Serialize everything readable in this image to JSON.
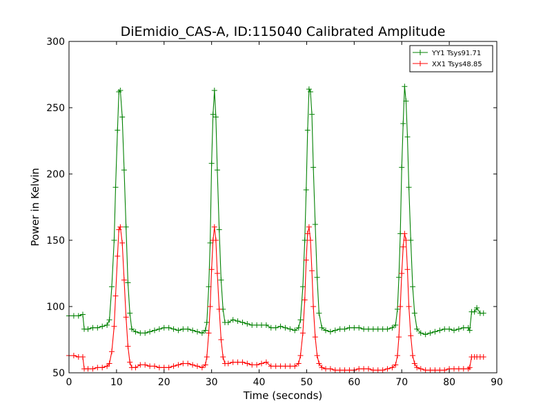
{
  "chart_data": {
    "type": "line",
    "title": "DiEmidio_CAS-A, ID:115040 Calibrated Amplitude",
    "xlabel": "Time (seconds)",
    "ylabel": "Power in Kelvin",
    "xlim": [
      0,
      90
    ],
    "ylim": [
      50,
      300
    ],
    "xticks": [
      0,
      10,
      20,
      30,
      40,
      50,
      60,
      70,
      80,
      90
    ],
    "yticks": [
      50,
      100,
      150,
      200,
      250,
      300
    ],
    "xtick_labels": [
      "0",
      "10",
      "20",
      "30",
      "40",
      "50",
      "60",
      "70",
      "80",
      "90"
    ],
    "ytick_labels": [
      "50",
      "100",
      "150",
      "200",
      "250",
      "300"
    ],
    "grid": false,
    "legend_position": "top-right",
    "marker": "plus",
    "series": [
      {
        "name": "YY1 Tsys91.71",
        "color": "#008000",
        "points": [
          [
            0,
            93
          ],
          [
            1,
            93
          ],
          [
            2,
            93
          ],
          [
            2.9,
            94
          ],
          [
            3.2,
            83
          ],
          [
            4,
            83
          ],
          [
            5,
            84
          ],
          [
            6,
            84
          ],
          [
            7,
            85
          ],
          [
            8,
            86
          ],
          [
            8.5,
            90
          ],
          [
            9,
            115
          ],
          [
            9.5,
            150
          ],
          [
            9.8,
            190
          ],
          [
            10.2,
            233
          ],
          [
            10.5,
            262
          ],
          [
            10.8,
            263
          ],
          [
            11.2,
            243
          ],
          [
            11.6,
            203
          ],
          [
            12,
            160
          ],
          [
            12.4,
            118
          ],
          [
            12.8,
            95
          ],
          [
            13.2,
            83
          ],
          [
            14,
            81
          ],
          [
            15,
            80
          ],
          [
            16,
            80
          ],
          [
            17,
            81
          ],
          [
            18,
            82
          ],
          [
            19,
            83
          ],
          [
            20,
            84
          ],
          [
            21,
            84
          ],
          [
            22,
            83
          ],
          [
            23,
            82
          ],
          [
            24,
            83
          ],
          [
            25,
            83
          ],
          [
            26,
            82
          ],
          [
            27,
            81
          ],
          [
            28,
            80
          ],
          [
            28.7,
            82
          ],
          [
            29,
            88
          ],
          [
            29.4,
            115
          ],
          [
            29.7,
            148
          ],
          [
            30,
            208
          ],
          [
            30.3,
            245
          ],
          [
            30.6,
            263
          ],
          [
            30.9,
            243
          ],
          [
            31.2,
            203
          ],
          [
            31.6,
            158
          ],
          [
            32,
            120
          ],
          [
            32.4,
            98
          ],
          [
            32.8,
            88
          ],
          [
            33.5,
            88
          ],
          [
            34.5,
            90
          ],
          [
            35.5,
            89
          ],
          [
            36.5,
            88
          ],
          [
            37.5,
            87
          ],
          [
            38.5,
            86
          ],
          [
            39.5,
            86
          ],
          [
            40.5,
            86
          ],
          [
            41.5,
            86
          ],
          [
            42.5,
            84
          ],
          [
            43.5,
            84
          ],
          [
            44.5,
            85
          ],
          [
            45.5,
            84
          ],
          [
            46.5,
            83
          ],
          [
            47.5,
            82
          ],
          [
            48.3,
            84
          ],
          [
            48.7,
            90
          ],
          [
            49.2,
            115
          ],
          [
            49.6,
            150
          ],
          [
            49.9,
            188
          ],
          [
            50.2,
            233
          ],
          [
            50.5,
            264
          ],
          [
            50.8,
            262
          ],
          [
            51.1,
            245
          ],
          [
            51.4,
            205
          ],
          [
            51.8,
            162
          ],
          [
            52.2,
            122
          ],
          [
            52.6,
            95
          ],
          [
            53.2,
            84
          ],
          [
            54,
            82
          ],
          [
            55,
            81
          ],
          [
            56,
            82
          ],
          [
            57,
            83
          ],
          [
            58,
            83
          ],
          [
            59,
            84
          ],
          [
            60,
            84
          ],
          [
            61,
            84
          ],
          [
            62,
            83
          ],
          [
            63,
            83
          ],
          [
            64,
            83
          ],
          [
            65,
            83
          ],
          [
            66,
            83
          ],
          [
            67,
            83
          ],
          [
            68,
            84
          ],
          [
            68.7,
            86
          ],
          [
            69.1,
            98
          ],
          [
            69.4,
            122
          ],
          [
            69.7,
            155
          ],
          [
            70,
            205
          ],
          [
            70.3,
            238
          ],
          [
            70.6,
            266
          ],
          [
            70.9,
            255
          ],
          [
            71.2,
            228
          ],
          [
            71.5,
            190
          ],
          [
            71.9,
            150
          ],
          [
            72.3,
            115
          ],
          [
            72.7,
            95
          ],
          [
            73.2,
            83
          ],
          [
            74,
            80
          ],
          [
            75,
            79
          ],
          [
            76,
            80
          ],
          [
            77,
            81
          ],
          [
            78,
            82
          ],
          [
            79,
            83
          ],
          [
            80,
            83
          ],
          [
            81,
            82
          ],
          [
            82,
            83
          ],
          [
            83,
            84
          ],
          [
            84,
            84
          ],
          [
            84.3,
            82
          ],
          [
            84.7,
            96
          ],
          [
            85.3,
            96
          ],
          [
            85.8,
            99
          ],
          [
            86.5,
            95
          ],
          [
            87.2,
            95
          ]
        ]
      },
      {
        "name": "XX1 Tsys48.85",
        "color": "#ff0000",
        "points": [
          [
            0,
            63
          ],
          [
            1,
            63
          ],
          [
            2,
            62
          ],
          [
            2.9,
            62
          ],
          [
            3.2,
            53
          ],
          [
            4,
            53
          ],
          [
            5,
            53
          ],
          [
            6,
            54
          ],
          [
            7,
            54
          ],
          [
            8,
            55
          ],
          [
            8.5,
            57
          ],
          [
            9,
            66
          ],
          [
            9.5,
            85
          ],
          [
            9.8,
            108
          ],
          [
            10.2,
            138
          ],
          [
            10.5,
            158
          ],
          [
            10.8,
            160
          ],
          [
            11.2,
            148
          ],
          [
            11.6,
            120
          ],
          [
            12,
            92
          ],
          [
            12.4,
            70
          ],
          [
            12.8,
            58
          ],
          [
            13.2,
            54
          ],
          [
            14,
            54
          ],
          [
            15,
            56
          ],
          [
            16,
            56
          ],
          [
            17,
            55
          ],
          [
            18,
            55
          ],
          [
            19,
            54
          ],
          [
            20,
            54
          ],
          [
            21,
            54
          ],
          [
            22,
            55
          ],
          [
            23,
            56
          ],
          [
            24,
            57
          ],
          [
            25,
            57
          ],
          [
            26,
            56
          ],
          [
            27,
            55
          ],
          [
            28,
            54
          ],
          [
            28.7,
            56
          ],
          [
            29,
            62
          ],
          [
            29.4,
            80
          ],
          [
            29.7,
            100
          ],
          [
            30,
            128
          ],
          [
            30.3,
            150
          ],
          [
            30.6,
            160
          ],
          [
            30.9,
            150
          ],
          [
            31.2,
            125
          ],
          [
            31.6,
            98
          ],
          [
            32,
            75
          ],
          [
            32.4,
            62
          ],
          [
            32.8,
            57
          ],
          [
            33.5,
            57
          ],
          [
            34.5,
            58
          ],
          [
            35.5,
            58
          ],
          [
            36.5,
            58
          ],
          [
            37.5,
            57
          ],
          [
            38.5,
            56
          ],
          [
            39.5,
            56
          ],
          [
            40.5,
            57
          ],
          [
            41.5,
            58
          ],
          [
            42.5,
            55
          ],
          [
            43.5,
            55
          ],
          [
            44.5,
            55
          ],
          [
            45.5,
            55
          ],
          [
            46.5,
            55
          ],
          [
            47.5,
            55
          ],
          [
            48.3,
            57
          ],
          [
            48.7,
            63
          ],
          [
            49.2,
            80
          ],
          [
            49.6,
            105
          ],
          [
            49.9,
            135
          ],
          [
            50.2,
            155
          ],
          [
            50.5,
            160
          ],
          [
            50.8,
            150
          ],
          [
            51.1,
            127
          ],
          [
            51.4,
            100
          ],
          [
            51.8,
            77
          ],
          [
            52.2,
            63
          ],
          [
            52.6,
            57
          ],
          [
            53.2,
            54
          ],
          [
            54,
            53
          ],
          [
            55,
            53
          ],
          [
            56,
            52
          ],
          [
            57,
            52
          ],
          [
            58,
            52
          ],
          [
            59,
            52
          ],
          [
            60,
            52
          ],
          [
            61,
            53
          ],
          [
            62,
            53
          ],
          [
            63,
            53
          ],
          [
            64,
            52
          ],
          [
            65,
            52
          ],
          [
            66,
            52
          ],
          [
            67,
            53
          ],
          [
            68,
            54
          ],
          [
            68.7,
            56
          ],
          [
            69.1,
            63
          ],
          [
            69.4,
            77
          ],
          [
            69.7,
            100
          ],
          [
            70,
            125
          ],
          [
            70.3,
            145
          ],
          [
            70.6,
            155
          ],
          [
            70.9,
            150
          ],
          [
            71.2,
            128
          ],
          [
            71.5,
            100
          ],
          [
            71.9,
            78
          ],
          [
            72.3,
            63
          ],
          [
            72.7,
            57
          ],
          [
            73.2,
            54
          ],
          [
            74,
            53
          ],
          [
            75,
            52
          ],
          [
            76,
            52
          ],
          [
            77,
            52
          ],
          [
            78,
            52
          ],
          [
            79,
            52
          ],
          [
            80,
            53
          ],
          [
            81,
            53
          ],
          [
            82,
            53
          ],
          [
            83,
            53
          ],
          [
            84,
            53
          ],
          [
            84.3,
            54
          ],
          [
            84.7,
            62
          ],
          [
            85.3,
            62
          ],
          [
            85.8,
            62
          ],
          [
            86.5,
            62
          ],
          [
            87.2,
            62
          ]
        ]
      }
    ]
  }
}
